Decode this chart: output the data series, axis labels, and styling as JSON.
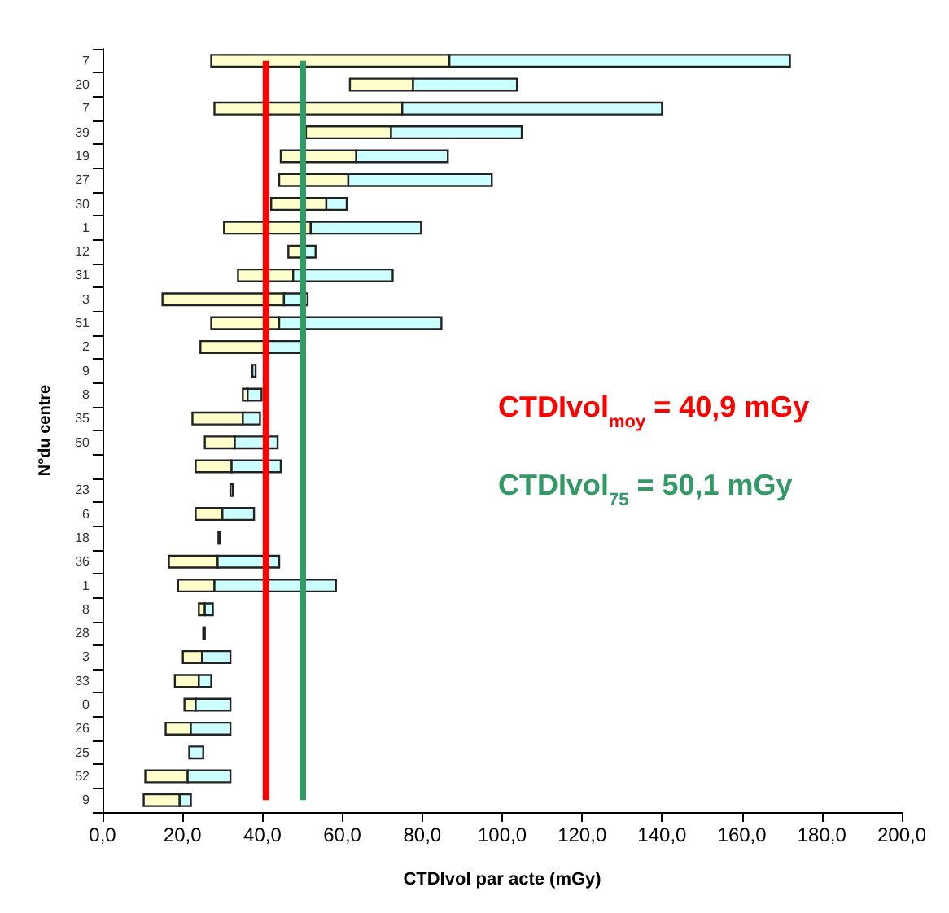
{
  "chart_data": {
    "type": "bar",
    "orientation": "horizontal",
    "xlabel": "CTDIvol par acte (mGy)",
    "ylabel": "N°du centre",
    "categories": [
      "7",
      "20",
      "7",
      "39",
      "19",
      "27",
      "30",
      "1",
      "12",
      "31",
      "3",
      "51",
      "2",
      "9",
      "8",
      "35",
      "50",
      null,
      "23",
      "6",
      "18",
      "36",
      "1",
      "8",
      "28",
      "3",
      "33",
      "0",
      "26",
      "25",
      "52",
      "9"
    ],
    "series": [
      {
        "color": "#ffffcc",
        "base": [
          27.2,
          61.9,
          28.0,
          50.9,
          44.6,
          44.2,
          42.2,
          30.4,
          46.5,
          33.9,
          15.0,
          27.2,
          24.5,
          null,
          35.1,
          22.5,
          25.6,
          23.3,
          null,
          23.3,
          null,
          16.6,
          18.9,
          24.1,
          null,
          20.1,
          18.1,
          20.5,
          15.8,
          null,
          10.7,
          10.3
        ],
        "values": [
          59.6,
          15.8,
          47.0,
          21.3,
          18.9,
          17.3,
          13.8,
          21.7,
          4.0,
          13.8,
          30.4,
          17.0,
          16.9,
          null,
          1.2,
          12.6,
          7.5,
          9.0,
          null,
          6.7,
          null,
          12.2,
          9.1,
          1.5,
          null,
          4.8,
          6.0,
          2.8,
          6.3,
          null,
          10.6,
          9.0
        ]
      },
      {
        "color": "#ccffff",
        "base": [
          86.8,
          77.7,
          75.0,
          72.2,
          63.5,
          61.5,
          56.0,
          52.1,
          50.5,
          47.7,
          45.4,
          44.2,
          41.4,
          37.5,
          36.3,
          35.1,
          33.1,
          32.3,
          32.0,
          30.0,
          29.0,
          28.8,
          28.0,
          25.6,
          25.2,
          24.9,
          24.1,
          23.3,
          22.1,
          21.7,
          21.3,
          19.3
        ],
        "values": [
          85.2,
          26.0,
          65.0,
          32.7,
          22.9,
          35.9,
          5.1,
          27.6,
          2.8,
          24.9,
          5.9,
          40.6,
          9.1,
          0.8,
          3.5,
          4.3,
          10.7,
          12.3,
          0.6,
          7.9,
          0.4,
          15.4,
          30.4,
          2.0,
          0.4,
          7.1,
          3.1,
          8.7,
          9.9,
          3.5,
          10.7,
          2.8
        ]
      }
    ],
    "xlim": [
      0,
      200
    ],
    "xticks": [
      {
        "value": 0,
        "label": "0,0"
      },
      {
        "value": 20,
        "label": "20,0"
      },
      {
        "value": 40,
        "label": "40,0"
      },
      {
        "value": 60,
        "label": "60,0"
      },
      {
        "value": 80,
        "label": "80,0"
      },
      {
        "value": 100,
        "label": "100,0"
      },
      {
        "value": 120,
        "label": "120,0"
      },
      {
        "value": 140,
        "label": "140,0"
      },
      {
        "value": 160,
        "label": "160,0"
      },
      {
        "value": 180,
        "label": "180,0"
      },
      {
        "value": 200,
        "label": "200,0"
      }
    ],
    "grid": false,
    "ref_lines": [
      {
        "axis": "x",
        "value": 40.9,
        "label": "CTDIvol$_{moy}$ = 40,9 mGy",
        "color": "#ff0000"
      },
      {
        "axis": "x",
        "value": 50.1,
        "label": "CTDIvol$_{75}$ = 50,1 mGy",
        "color": "#339966"
      }
    ]
  }
}
